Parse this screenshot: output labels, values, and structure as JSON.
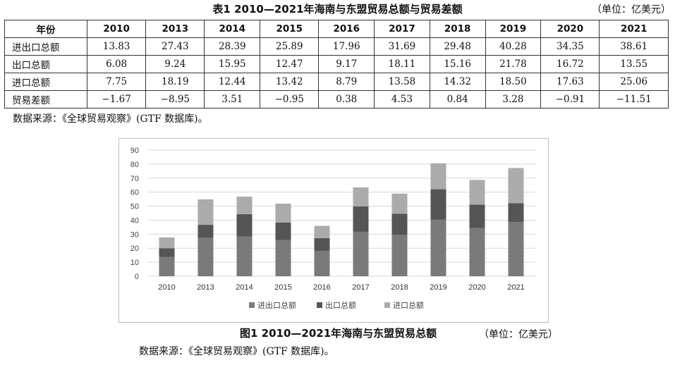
{
  "table": {
    "title": "表1 2010—2021年海南与东盟贸易总额与贸易差额",
    "unit": "（单位：亿美元）",
    "header": [
      "年份",
      "2010",
      "2013",
      "2014",
      "2015",
      "2016",
      "2017",
      "2018",
      "2019",
      "2020",
      "2021"
    ],
    "rows": [
      {
        "label": "进出口总额",
        "values": [
          "13.83",
          "27.43",
          "28.39",
          "25.89",
          "17.96",
          "31.69",
          "29.48",
          "40.28",
          "34.35",
          "38.61"
        ]
      },
      {
        "label": "出口总额",
        "values": [
          "6.08",
          "9.24",
          "15.95",
          "12.47",
          "9.17",
          "18.11",
          "15.16",
          "21.78",
          "16.72",
          "13.55"
        ]
      },
      {
        "label": "进口总额",
        "values": [
          "7.75",
          "18.19",
          "12.44",
          "13.42",
          "8.79",
          "13.58",
          "14.32",
          "18.50",
          "17.63",
          "25.06"
        ]
      },
      {
        "label": "贸易差额",
        "values": [
          "−1.67",
          "−8.95",
          "3.51",
          "−0.95",
          "0.38",
          "4.53",
          "0.84",
          "3.28",
          "−0.91",
          "−11.51"
        ]
      }
    ],
    "source": "数据来源：《全球贸易观察》(GTF 数据库)。"
  },
  "figure": {
    "caption": "图1 2010—2021年海南与东盟贸易总额",
    "unit": "（单位：亿美元）",
    "source": "数据来源：《全球贸易观察》(GTF 数据库)。"
  },
  "chart_data": {
    "type": "bar",
    "stacked": true,
    "categories": [
      "2010",
      "2013",
      "2014",
      "2015",
      "2016",
      "2017",
      "2018",
      "2019",
      "2020",
      "2021"
    ],
    "series": [
      {
        "name": "进出口总额",
        "color": "#7a7a7a",
        "values": [
          13.83,
          27.43,
          28.39,
          25.89,
          17.96,
          31.69,
          29.48,
          40.28,
          34.35,
          38.61
        ]
      },
      {
        "name": "出口总额",
        "color": "#555555",
        "values": [
          6.08,
          9.24,
          15.95,
          12.47,
          9.17,
          18.11,
          15.16,
          21.78,
          16.72,
          13.55
        ]
      },
      {
        "name": "进口总额",
        "color": "#ababab",
        "values": [
          7.75,
          18.19,
          12.44,
          13.42,
          8.79,
          13.58,
          14.32,
          18.5,
          17.63,
          25.06
        ]
      }
    ],
    "ylim": [
      0,
      90
    ],
    "yticks": [
      0,
      10,
      20,
      30,
      40,
      50,
      60,
      70,
      80,
      90
    ],
    "grid": true,
    "legend": "bottom"
  }
}
